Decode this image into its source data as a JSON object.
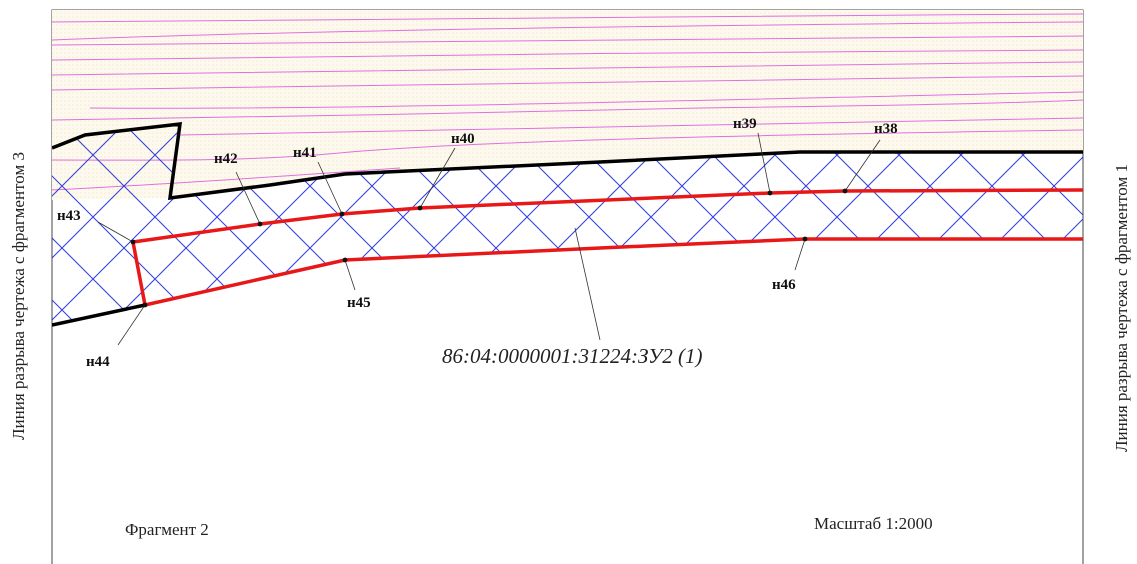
{
  "drawing": {
    "fragment_label": "Фрагмент 2",
    "scale_label": "Масштаб 1:2000",
    "left_break_label": "Линия разрыва чертежа с фрагментом 3",
    "right_break_label": "Линия разрыва чертежа с фрагментом 1",
    "parcel_label": "86:04:0000001:31224:ЗУ2 (1)"
  },
  "points": {
    "n38": "н38",
    "n39": "н39",
    "n40": "н40",
    "n41": "н41",
    "n42": "н42",
    "n43": "н43",
    "n44": "н44",
    "n45": "н45",
    "n46": "н46"
  },
  "colors": {
    "background_fill": "#fdf9ee",
    "hatch": "#1f2fd6",
    "parcel_boundary": "#e81818",
    "contour": "#e070e0",
    "existing_boundary": "#000000"
  }
}
